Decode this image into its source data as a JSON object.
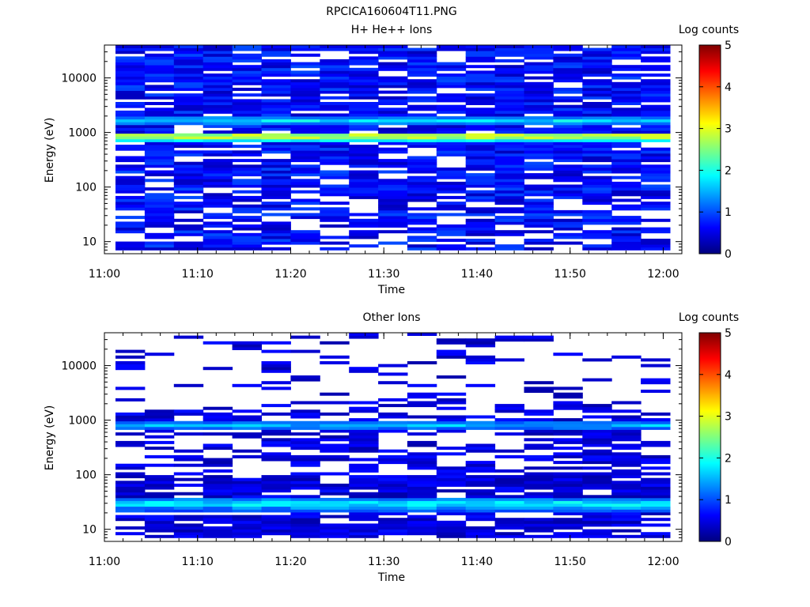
{
  "figure": {
    "title": "RPCICA160604T11.PNG"
  },
  "chart_data": [
    {
      "type": "heatmap",
      "title": "H+ He++ Ions",
      "xlabel": "Time",
      "ylabel": "Energy (eV)",
      "x_ticks": [
        "11:00",
        "11:10",
        "11:20",
        "11:30",
        "11:40",
        "11:50",
        "12:00"
      ],
      "x_range": [
        "11:00",
        "12:02"
      ],
      "y_scale": "log",
      "y_ticks": [
        "10",
        "100",
        "1000",
        "10000"
      ],
      "y_range": [
        6,
        40000
      ],
      "colorbar": {
        "label": "Log counts",
        "range": [
          0,
          5
        ],
        "ticks": [
          "0",
          "1",
          "2",
          "3",
          "4",
          "5"
        ]
      },
      "x_bins": 19,
      "notable_bands": [
        {
          "energy_ev": 850,
          "log_counts": 3.0
        },
        {
          "energy_ev": 1700,
          "log_counts": 2.0
        }
      ],
      "background_log_counts": 0.3
    },
    {
      "type": "heatmap",
      "title": "Other Ions",
      "xlabel": "Time",
      "ylabel": "Energy (eV)",
      "x_ticks": [
        "11:00",
        "11:10",
        "11:20",
        "11:30",
        "11:40",
        "11:50",
        "12:00"
      ],
      "x_range": [
        "11:00",
        "12:02"
      ],
      "y_scale": "log",
      "y_ticks": [
        "10",
        "100",
        "1000",
        "10000"
      ],
      "y_range": [
        6,
        40000
      ],
      "colorbar": {
        "label": "Log counts",
        "range": [
          0,
          5
        ],
        "ticks": [
          "0",
          "1",
          "2",
          "3",
          "4",
          "5"
        ]
      },
      "x_bins": 19,
      "notable_bands": [
        {
          "energy_ev": 800,
          "log_counts": 1.8
        },
        {
          "energy_ev": 30,
          "log_counts": 2.0
        },
        {
          "energy_ev": 25,
          "log_counts": 1.6
        }
      ],
      "background_log_counts": 0.2
    }
  ]
}
